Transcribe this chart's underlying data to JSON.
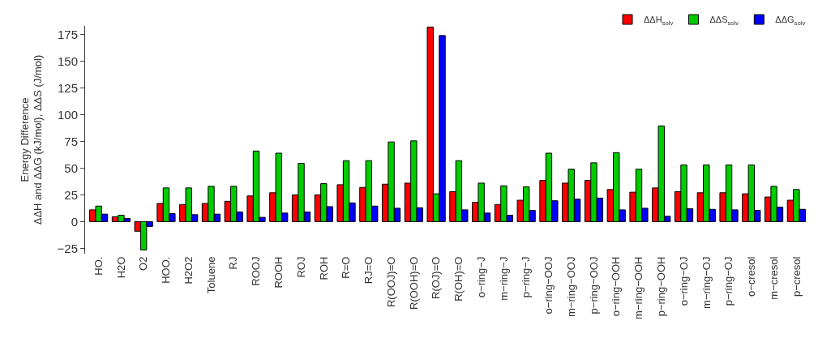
{
  "chart_data": {
    "type": "bar",
    "ylabel": "Energy Difference\nΔΔH and ΔΔG (kJ/mol), ΔΔS (J/mol)",
    "categories": [
      "HO.",
      "H2O",
      "O2",
      "HOO.",
      "H2O2",
      "Toluene",
      "RJ",
      "ROOJ",
      "ROOH",
      "ROJ",
      "ROH",
      "R=O",
      "RJ=O",
      "R(OOJ)=O",
      "R(OOH)=O",
      "R(OJ)=O",
      "R(OH)=O",
      "o−ring−J",
      "m−ring−J",
      "p−ring−J",
      "o−ring−OOJ",
      "m−ring−OOJ",
      "p−ring−OOJ",
      "o−ring−OOH",
      "m−ring−OOH",
      "p−ring−OOH",
      "o−ring−OJ",
      "m−ring−OJ",
      "p−ring−OJ",
      "o−cresol",
      "m−cresol",
      "p−cresol"
    ],
    "series": [
      {
        "name": "ΔΔH$_{solv}$",
        "color": "#ff0000",
        "values": [
          11,
          4.5,
          -9,
          17,
          16,
          17,
          19,
          24,
          27,
          25,
          25,
          34.5,
          32,
          35,
          36,
          182,
          28,
          18,
          16,
          20,
          38.5,
          36,
          38.5,
          30,
          27.5,
          31.5,
          28,
          27,
          27,
          26,
          23,
          20
        ]
      },
      {
        "name": "ΔΔS$_{solv}$",
        "color": "#00cc00",
        "values": [
          14.5,
          6,
          -26.5,
          31.5,
          31.5,
          33,
          33,
          66,
          64,
          54.5,
          35.5,
          57,
          57,
          74.5,
          75.5,
          26,
          57,
          36,
          33.5,
          32.5,
          64,
          49,
          55,
          64.5,
          49,
          89.5,
          53,
          53,
          53,
          53,
          33,
          30
        ]
      },
      {
        "name": "ΔΔG$_{solv}$",
        "color": "#0000ff",
        "values": [
          7,
          3,
          -4.5,
          7.5,
          6.5,
          7,
          9,
          4,
          8,
          9,
          14,
          17.5,
          14.5,
          12.5,
          13,
          174,
          11,
          8,
          6,
          10.5,
          19.5,
          21,
          22,
          11,
          12.5,
          5,
          12,
          11.5,
          11,
          10.5,
          13.5,
          11.5
        ]
      }
    ],
    "ylim": [
      -30,
      183
    ],
    "yticks": [
      -25,
      0,
      25,
      50,
      75,
      100,
      125,
      150,
      175
    ],
    "grid": false,
    "legend": "top right"
  }
}
